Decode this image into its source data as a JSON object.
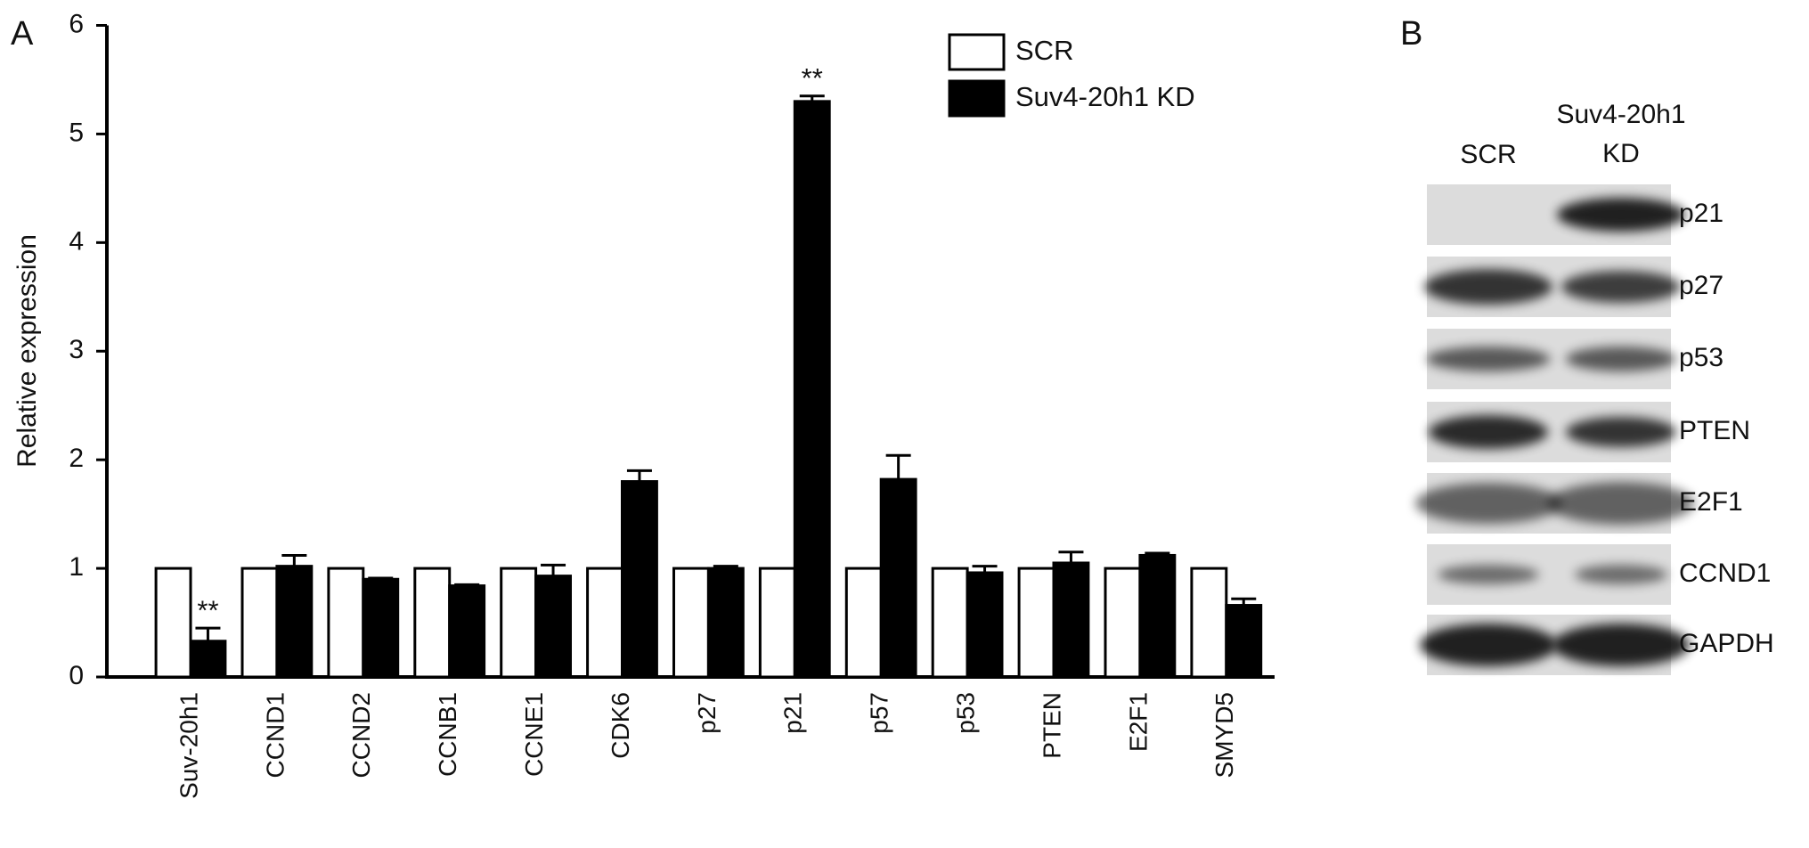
{
  "chart_data": {
    "type": "bar",
    "panel_label": "A",
    "y_label": "Relative expression",
    "categories": [
      "Suv-20h1",
      "CCND1",
      "CCND2",
      "CCNB1",
      "CCNE1",
      "CDK6",
      "p27",
      "p21",
      "p57",
      "p53",
      "PTEN",
      "E2F1",
      "SMYD5"
    ],
    "series": [
      {
        "name": "SCR",
        "color": "#ffffff",
        "values": [
          1,
          1,
          1,
          1,
          1,
          1,
          1,
          1,
          1,
          1,
          1,
          1,
          1
        ]
      },
      {
        "name": "Suv4-20h1 KD",
        "color": "#000000",
        "values": [
          0.33,
          1.02,
          0.9,
          0.84,
          0.93,
          1.8,
          1.0,
          5.3,
          1.82,
          0.96,
          1.05,
          1.12,
          0.66
        ],
        "errors": [
          0.12,
          0.1,
          0.01,
          0.01,
          0.1,
          0.1,
          0.02,
          0.05,
          0.22,
          0.06,
          0.1,
          0.02,
          0.06
        ]
      }
    ],
    "annotations": [
      {
        "text": "**",
        "x": "Suv-20h1"
      },
      {
        "text": "**",
        "x": "p21"
      }
    ],
    "ylim": [
      0,
      6
    ],
    "yticks": [
      0,
      1,
      2,
      3,
      4,
      5,
      6
    ],
    "grid": false,
    "legend": "top-right"
  },
  "blot": {
    "panel_label": "B",
    "columns": [
      "SCR",
      "Suv4-20h1 KD"
    ],
    "rows": [
      "p21",
      "p27",
      "p53",
      "PTEN",
      "E2F1",
      "CCND1",
      "GAPDH"
    ]
  }
}
